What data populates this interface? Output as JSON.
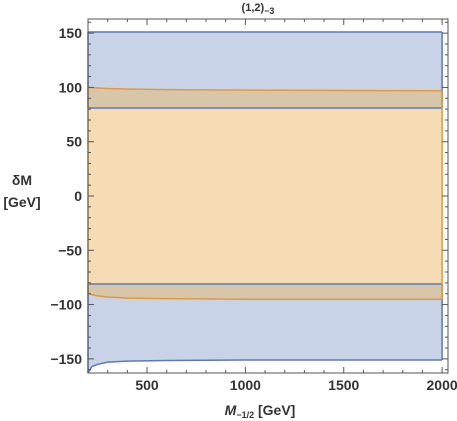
{
  "chart_data": {
    "type": "area",
    "title_main": "(1,2)",
    "title_sub": "−3",
    "xlabel_main": "M",
    "xlabel_sub": "−1/2",
    "xlabel_unit": " [GeV]",
    "ylabel_line1": "δM",
    "ylabel_line2": "[GeV]",
    "xlim": [
      200,
      2030
    ],
    "ylim": [
      -163,
      163
    ],
    "xticks": [
      500,
      1000,
      1500,
      2000
    ],
    "yticks": [
      150,
      100,
      50,
      0,
      -50,
      -100,
      -150
    ],
    "ytick_labels": [
      "150",
      "100",
      "50",
      "0",
      "−50",
      "−100",
      "−150"
    ],
    "grid": false,
    "colors": {
      "blue_fill": "#c9d3e7",
      "blue_line": "#5b79b7",
      "orange_fill": "#f6dcb4",
      "orange_line": "#e39a3c",
      "overlap_fill": "#d8c6aa",
      "frame": "#555555"
    },
    "series": [
      {
        "color_key": "blue",
        "x": [
          200,
          220,
          250,
          300,
          400,
          600,
          1000,
          2000
        ],
        "upper": [
          151,
          151,
          151,
          151,
          151,
          151,
          151,
          151
        ],
        "lower": [
          -163,
          -157,
          -155,
          -153,
          -152,
          -151.5,
          -151,
          -151
        ],
        "inner_upper": [
          81,
          81,
          81,
          81,
          81,
          81,
          81,
          81
        ],
        "inner_lower": [
          -81,
          -81,
          -81,
          -81,
          -81,
          -81,
          -81,
          -81
        ]
      },
      {
        "color_key": "orange",
        "x": [
          200,
          250,
          300,
          400,
          600,
          1000,
          1500,
          2000
        ],
        "upper": [
          100,
          99.5,
          99,
          98.5,
          98,
          97.5,
          97.2,
          97
        ],
        "lower": [
          -90,
          -92,
          -93,
          -94,
          -94.5,
          -95,
          -95,
          -95
        ]
      }
    ]
  }
}
